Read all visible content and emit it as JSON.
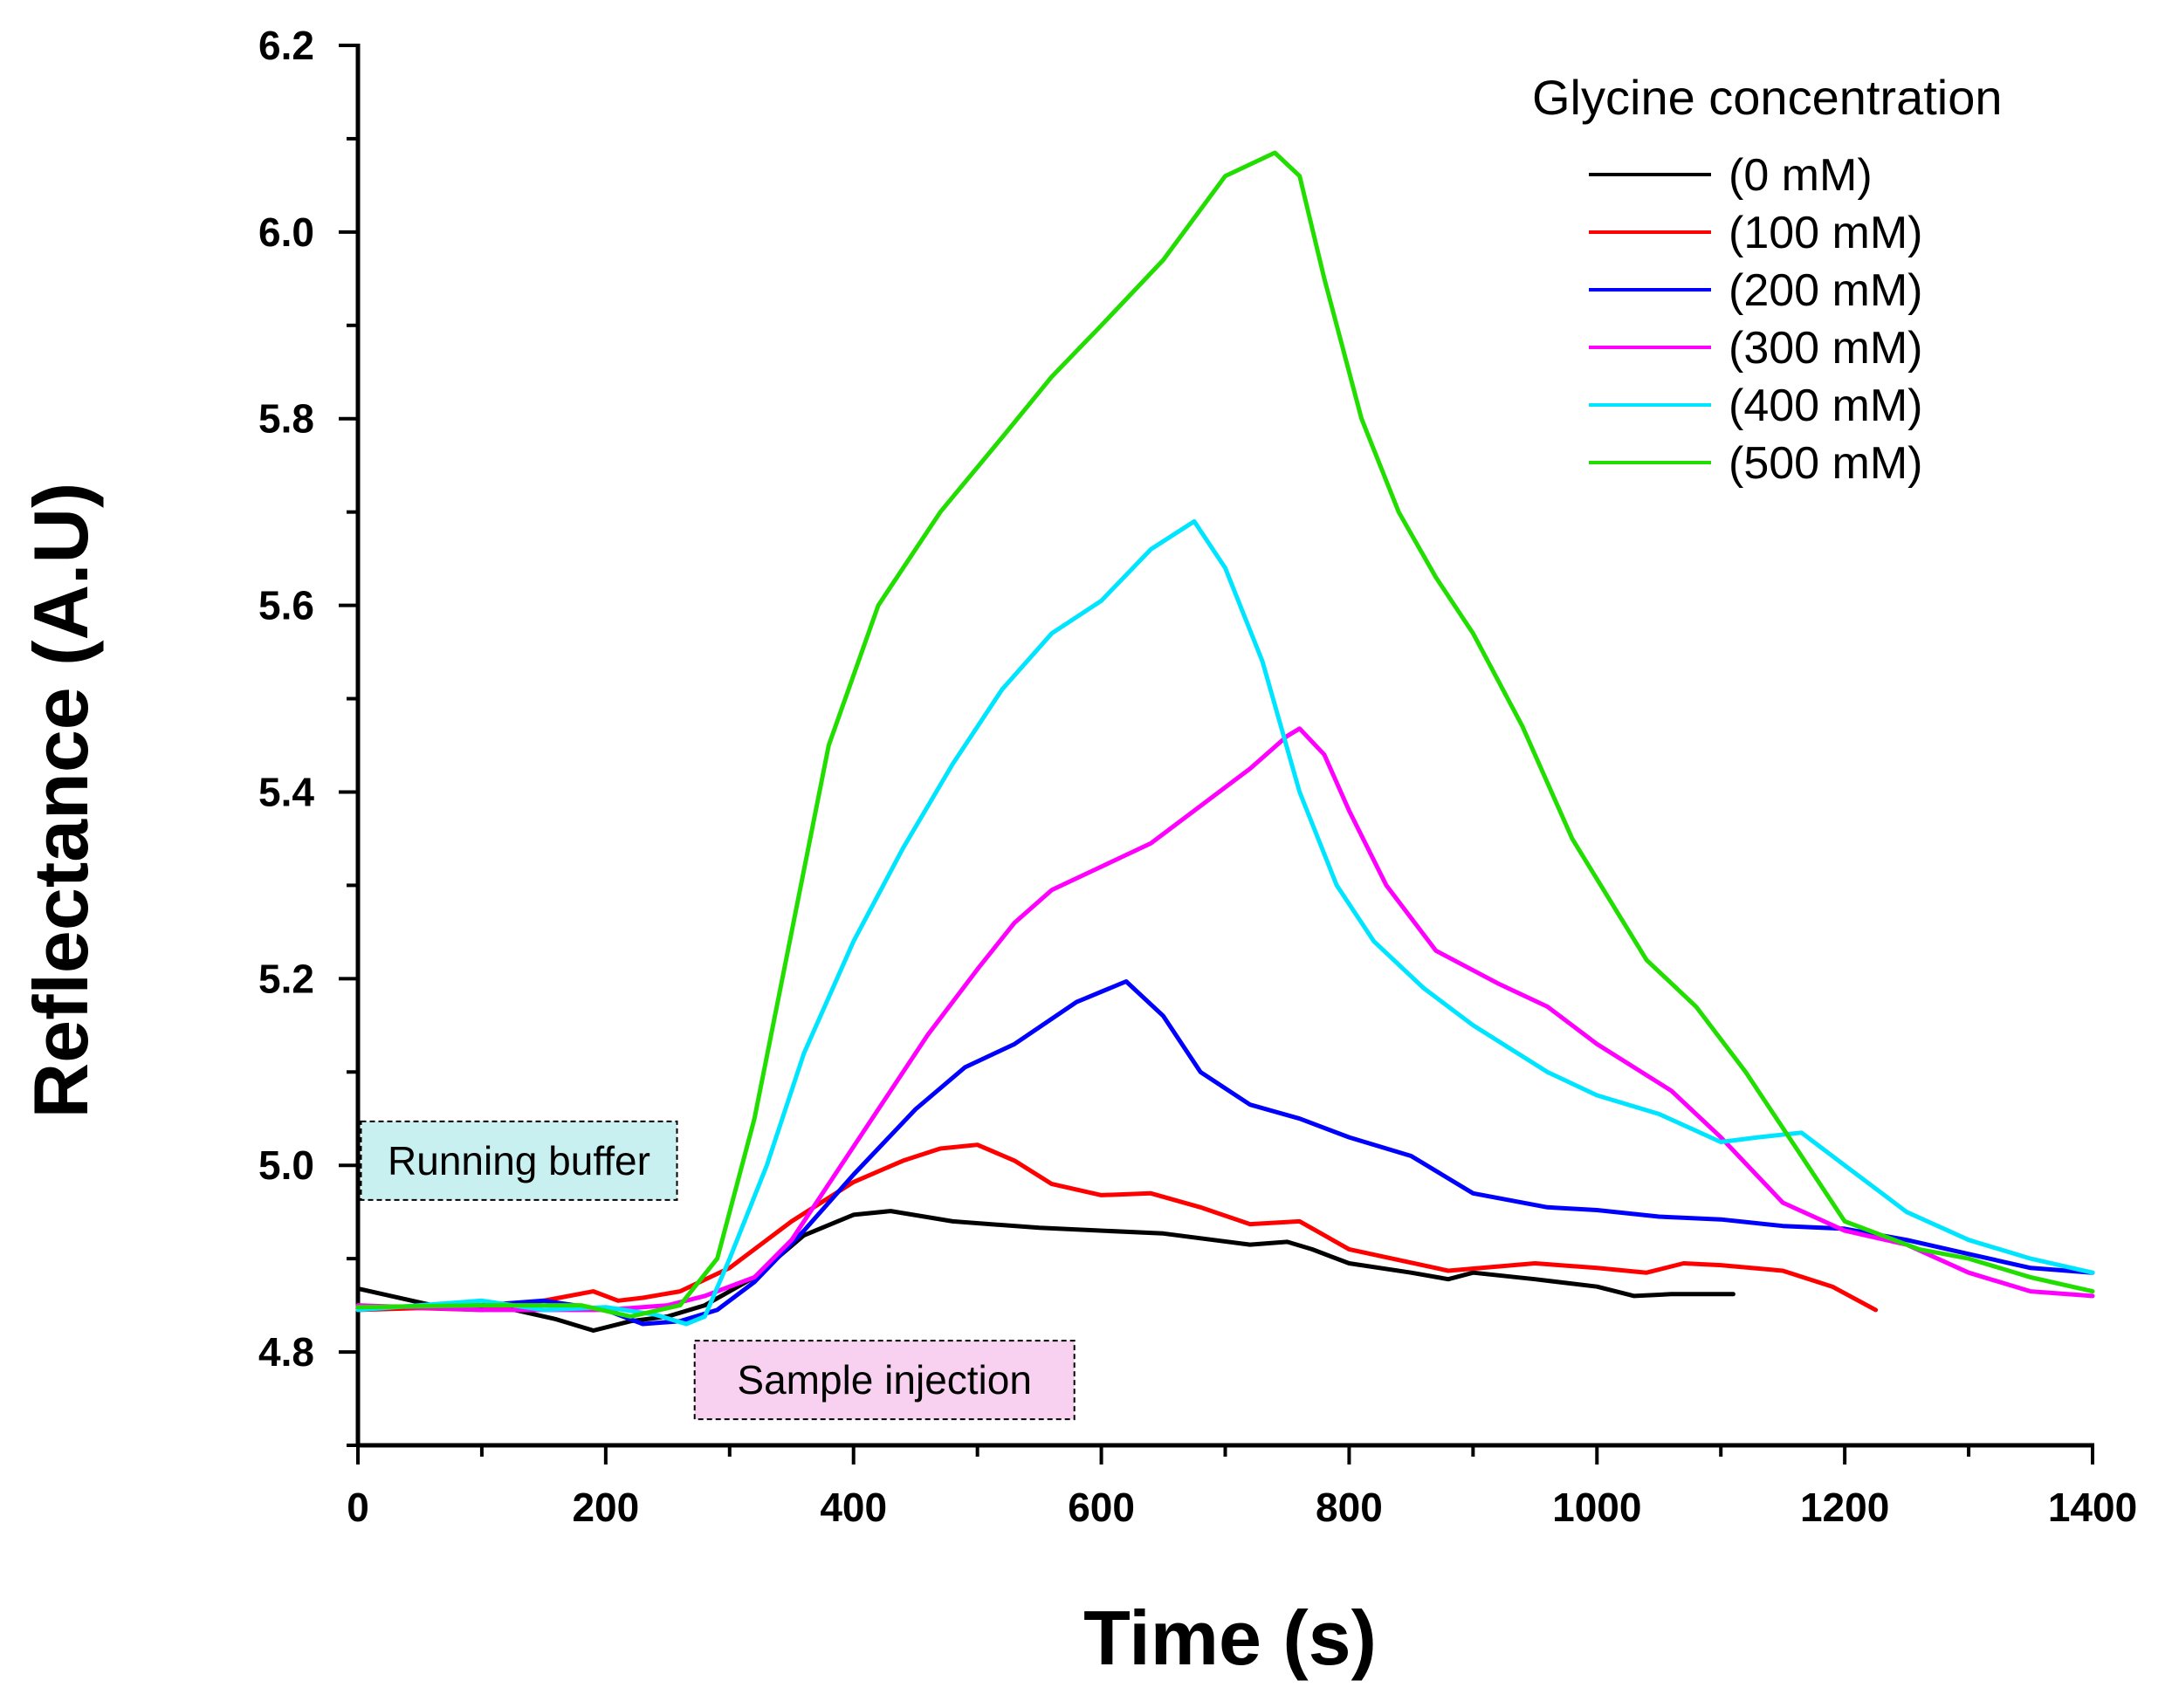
{
  "chart_data": {
    "type": "line",
    "xlabel": "Time (s)",
    "ylabel": "Reflectance (A.U)",
    "xlim": [
      0,
      1400
    ],
    "ylim": [
      4.7,
      6.2
    ],
    "x_ticks": [
      "0",
      "200",
      "400",
      "600",
      "800",
      "1000",
      "1200",
      "1400"
    ],
    "y_ticks": [
      "4.8",
      "5.0",
      "5.2",
      "5.4",
      "5.6",
      "5.8",
      "6.0",
      "6.2"
    ],
    "legend": {
      "title": "Glycine concentration",
      "position": "top-right"
    },
    "annotations": [
      {
        "text": "Running buffer",
        "x": 130,
        "y": 5.005,
        "color": "#c8f0f0"
      },
      {
        "text": "Sample injection",
        "x": 425,
        "y": 4.77,
        "color": "#f8d0f0"
      }
    ],
    "series": [
      {
        "name": "(0 mM)",
        "color": "#000000",
        "x": [
          0,
          60,
          120,
          160,
          190,
          220,
          250,
          280,
          320,
          360,
          400,
          430,
          480,
          550,
          650,
          720,
          750,
          770,
          800,
          850,
          880,
          900,
          950,
          1000,
          1030,
          1060,
          1110
        ],
        "y": [
          4.868,
          4.85,
          4.847,
          4.835,
          4.823,
          4.833,
          4.838,
          4.85,
          4.88,
          4.925,
          4.947,
          4.951,
          4.94,
          4.933,
          4.927,
          4.915,
          4.918,
          4.91,
          4.895,
          4.885,
          4.878,
          4.885,
          4.878,
          4.87,
          4.86,
          4.862,
          4.862
        ]
      },
      {
        "name": "(100 mM)",
        "color": "#ff0000",
        "x": [
          0,
          50,
          100,
          150,
          190,
          210,
          230,
          260,
          300,
          350,
          400,
          440,
          470,
          500,
          530,
          560,
          600,
          640,
          680,
          720,
          760,
          800,
          880,
          950,
          1000,
          1040,
          1070,
          1100,
          1150,
          1190,
          1225
        ],
        "y": [
          4.845,
          4.847,
          4.845,
          4.855,
          4.865,
          4.855,
          4.858,
          4.865,
          4.89,
          4.94,
          4.982,
          5.005,
          5.018,
          5.022,
          5.005,
          4.98,
          4.968,
          4.97,
          4.955,
          4.937,
          4.94,
          4.91,
          4.887,
          4.895,
          4.89,
          4.885,
          4.895,
          4.893,
          4.887,
          4.87,
          4.845
        ]
      },
      {
        "name": "(200 mM)",
        "color": "#0000ff",
        "x": [
          0,
          100,
          150,
          200,
          230,
          260,
          290,
          320,
          360,
          400,
          450,
          490,
          530,
          580,
          620,
          650,
          680,
          720,
          760,
          800,
          850,
          900,
          960,
          1000,
          1050,
          1100,
          1150,
          1200,
          1250,
          1300,
          1350,
          1400
        ],
        "y": [
          4.848,
          4.85,
          4.855,
          4.845,
          4.83,
          4.833,
          4.845,
          4.875,
          4.93,
          4.99,
          5.06,
          5.105,
          5.13,
          5.175,
          5.197,
          5.16,
          5.1,
          5.065,
          5.05,
          5.03,
          5.01,
          4.97,
          4.955,
          4.952,
          4.945,
          4.942,
          4.935,
          4.932,
          4.92,
          4.905,
          4.89,
          4.885
        ]
      },
      {
        "name": "(300 mM)",
        "color": "#ff00ff",
        "x": [
          0,
          100,
          200,
          250,
          280,
          320,
          350,
          380,
          420,
          460,
          500,
          530,
          560,
          600,
          640,
          680,
          720,
          750,
          760,
          780,
          800,
          830,
          870,
          920,
          960,
          1000,
          1060,
          1100,
          1150,
          1200,
          1250,
          1300,
          1350,
          1400
        ],
        "y": [
          4.85,
          4.845,
          4.845,
          4.85,
          4.86,
          4.88,
          4.92,
          4.98,
          5.06,
          5.14,
          5.21,
          5.26,
          5.295,
          5.32,
          5.345,
          5.385,
          5.425,
          5.46,
          5.468,
          5.44,
          5.38,
          5.3,
          5.23,
          5.195,
          5.17,
          5.13,
          5.08,
          5.03,
          4.96,
          4.93,
          4.915,
          4.885,
          4.865,
          4.86
        ]
      },
      {
        "name": "(400 mM)",
        "color": "#00e5ff",
        "x": [
          0,
          100,
          150,
          200,
          240,
          265,
          280,
          300,
          330,
          360,
          400,
          440,
          480,
          520,
          560,
          600,
          640,
          675,
          700,
          730,
          760,
          790,
          820,
          860,
          900,
          960,
          1000,
          1050,
          1100,
          1130,
          1165,
          1200,
          1250,
          1300,
          1350,
          1400
        ],
        "y": [
          4.845,
          4.855,
          4.845,
          4.848,
          4.84,
          4.83,
          4.838,
          4.9,
          5.0,
          5.12,
          5.24,
          5.34,
          5.43,
          5.51,
          5.57,
          5.605,
          5.66,
          5.69,
          5.64,
          5.54,
          5.4,
          5.3,
          5.24,
          5.19,
          5.15,
          5.1,
          5.075,
          5.055,
          5.025,
          5.03,
          5.035,
          5.0,
          4.95,
          4.92,
          4.9,
          4.885
        ]
      },
      {
        "name": "(500 mM)",
        "color": "#22dd00",
        "x": [
          0,
          100,
          180,
          220,
          260,
          290,
          320,
          350,
          380,
          420,
          470,
          520,
          560,
          600,
          650,
          700,
          740,
          760,
          780,
          810,
          840,
          870,
          900,
          940,
          980,
          1040,
          1080,
          1120,
          1160,
          1200,
          1260,
          1300,
          1350,
          1400
        ],
        "y": [
          4.848,
          4.85,
          4.85,
          4.838,
          4.85,
          4.9,
          5.05,
          5.25,
          5.45,
          5.6,
          5.7,
          5.78,
          5.845,
          5.9,
          5.97,
          6.06,
          6.085,
          6.06,
          5.95,
          5.8,
          5.7,
          5.63,
          5.57,
          5.47,
          5.35,
          5.22,
          5.17,
          5.1,
          5.02,
          4.94,
          4.91,
          4.9,
          4.88,
          4.865
        ]
      }
    ]
  }
}
